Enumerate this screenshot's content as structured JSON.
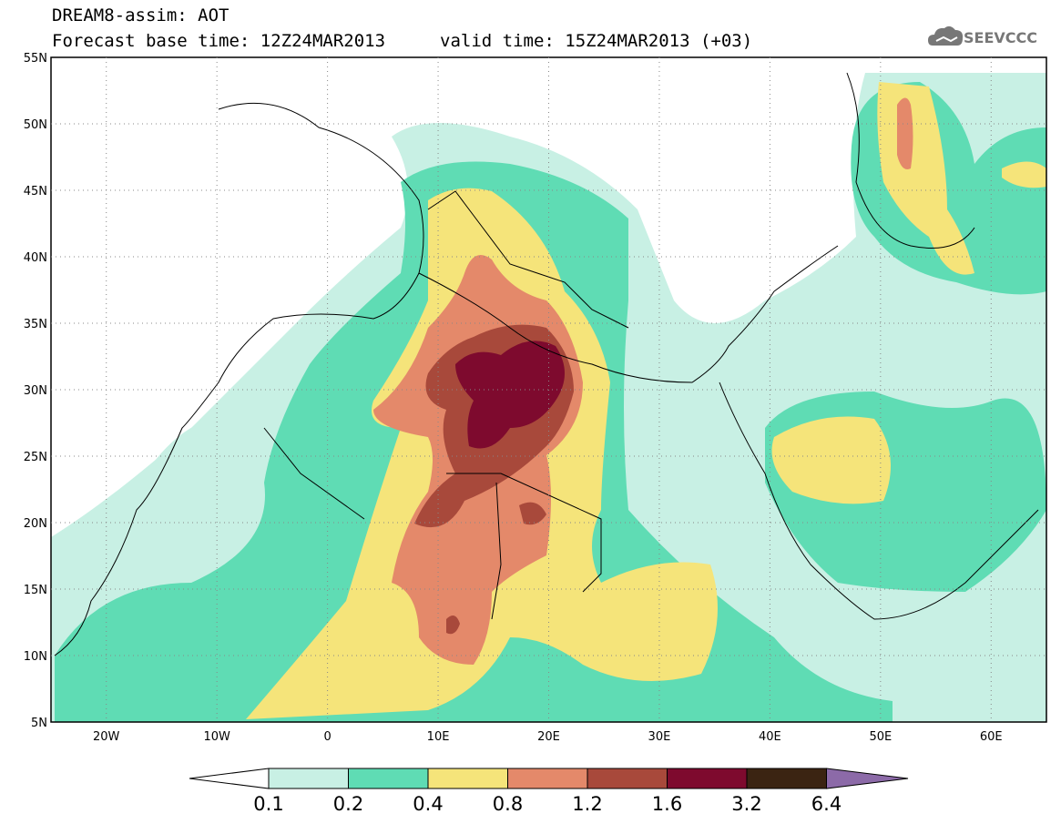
{
  "header": {
    "title": "DREAM8-assim: AOT",
    "base_time": "Forecast base time: 12Z24MAR2013",
    "valid_time": "valid time: 15Z24MAR2013 (+03)",
    "logo_text": "SEEVCCC",
    "logo_icon": "cloud-logo-icon"
  },
  "axes": {
    "lat_labels": [
      "55N",
      "50N",
      "45N",
      "40N",
      "35N",
      "30N",
      "25N",
      "20N",
      "15N",
      "10N",
      "5N"
    ],
    "lon_labels": [
      "20W",
      "10W",
      "0",
      "10E",
      "20E",
      "30E",
      "40E",
      "50E",
      "60E"
    ],
    "lat_values": [
      55,
      50,
      45,
      40,
      35,
      30,
      25,
      20,
      15,
      10,
      5
    ],
    "lon_values": [
      -20,
      -10,
      0,
      10,
      20,
      30,
      40,
      50,
      60
    ],
    "lon_range": [
      -25,
      65
    ],
    "lat_range": [
      5,
      55
    ],
    "grid": "dotted"
  },
  "colorbar": {
    "labels": [
      "0.1",
      "0.2",
      "0.4",
      "0.8",
      "1.2",
      "1.6",
      "3.2",
      "6.4"
    ],
    "colors": [
      "#ffffff",
      "#c8f0e4",
      "#5fdcb4",
      "#f5e47a",
      "#e4896a",
      "#a8493b",
      "#7e0a2e",
      "#3b2412",
      "#8c6aa8"
    ]
  }
}
